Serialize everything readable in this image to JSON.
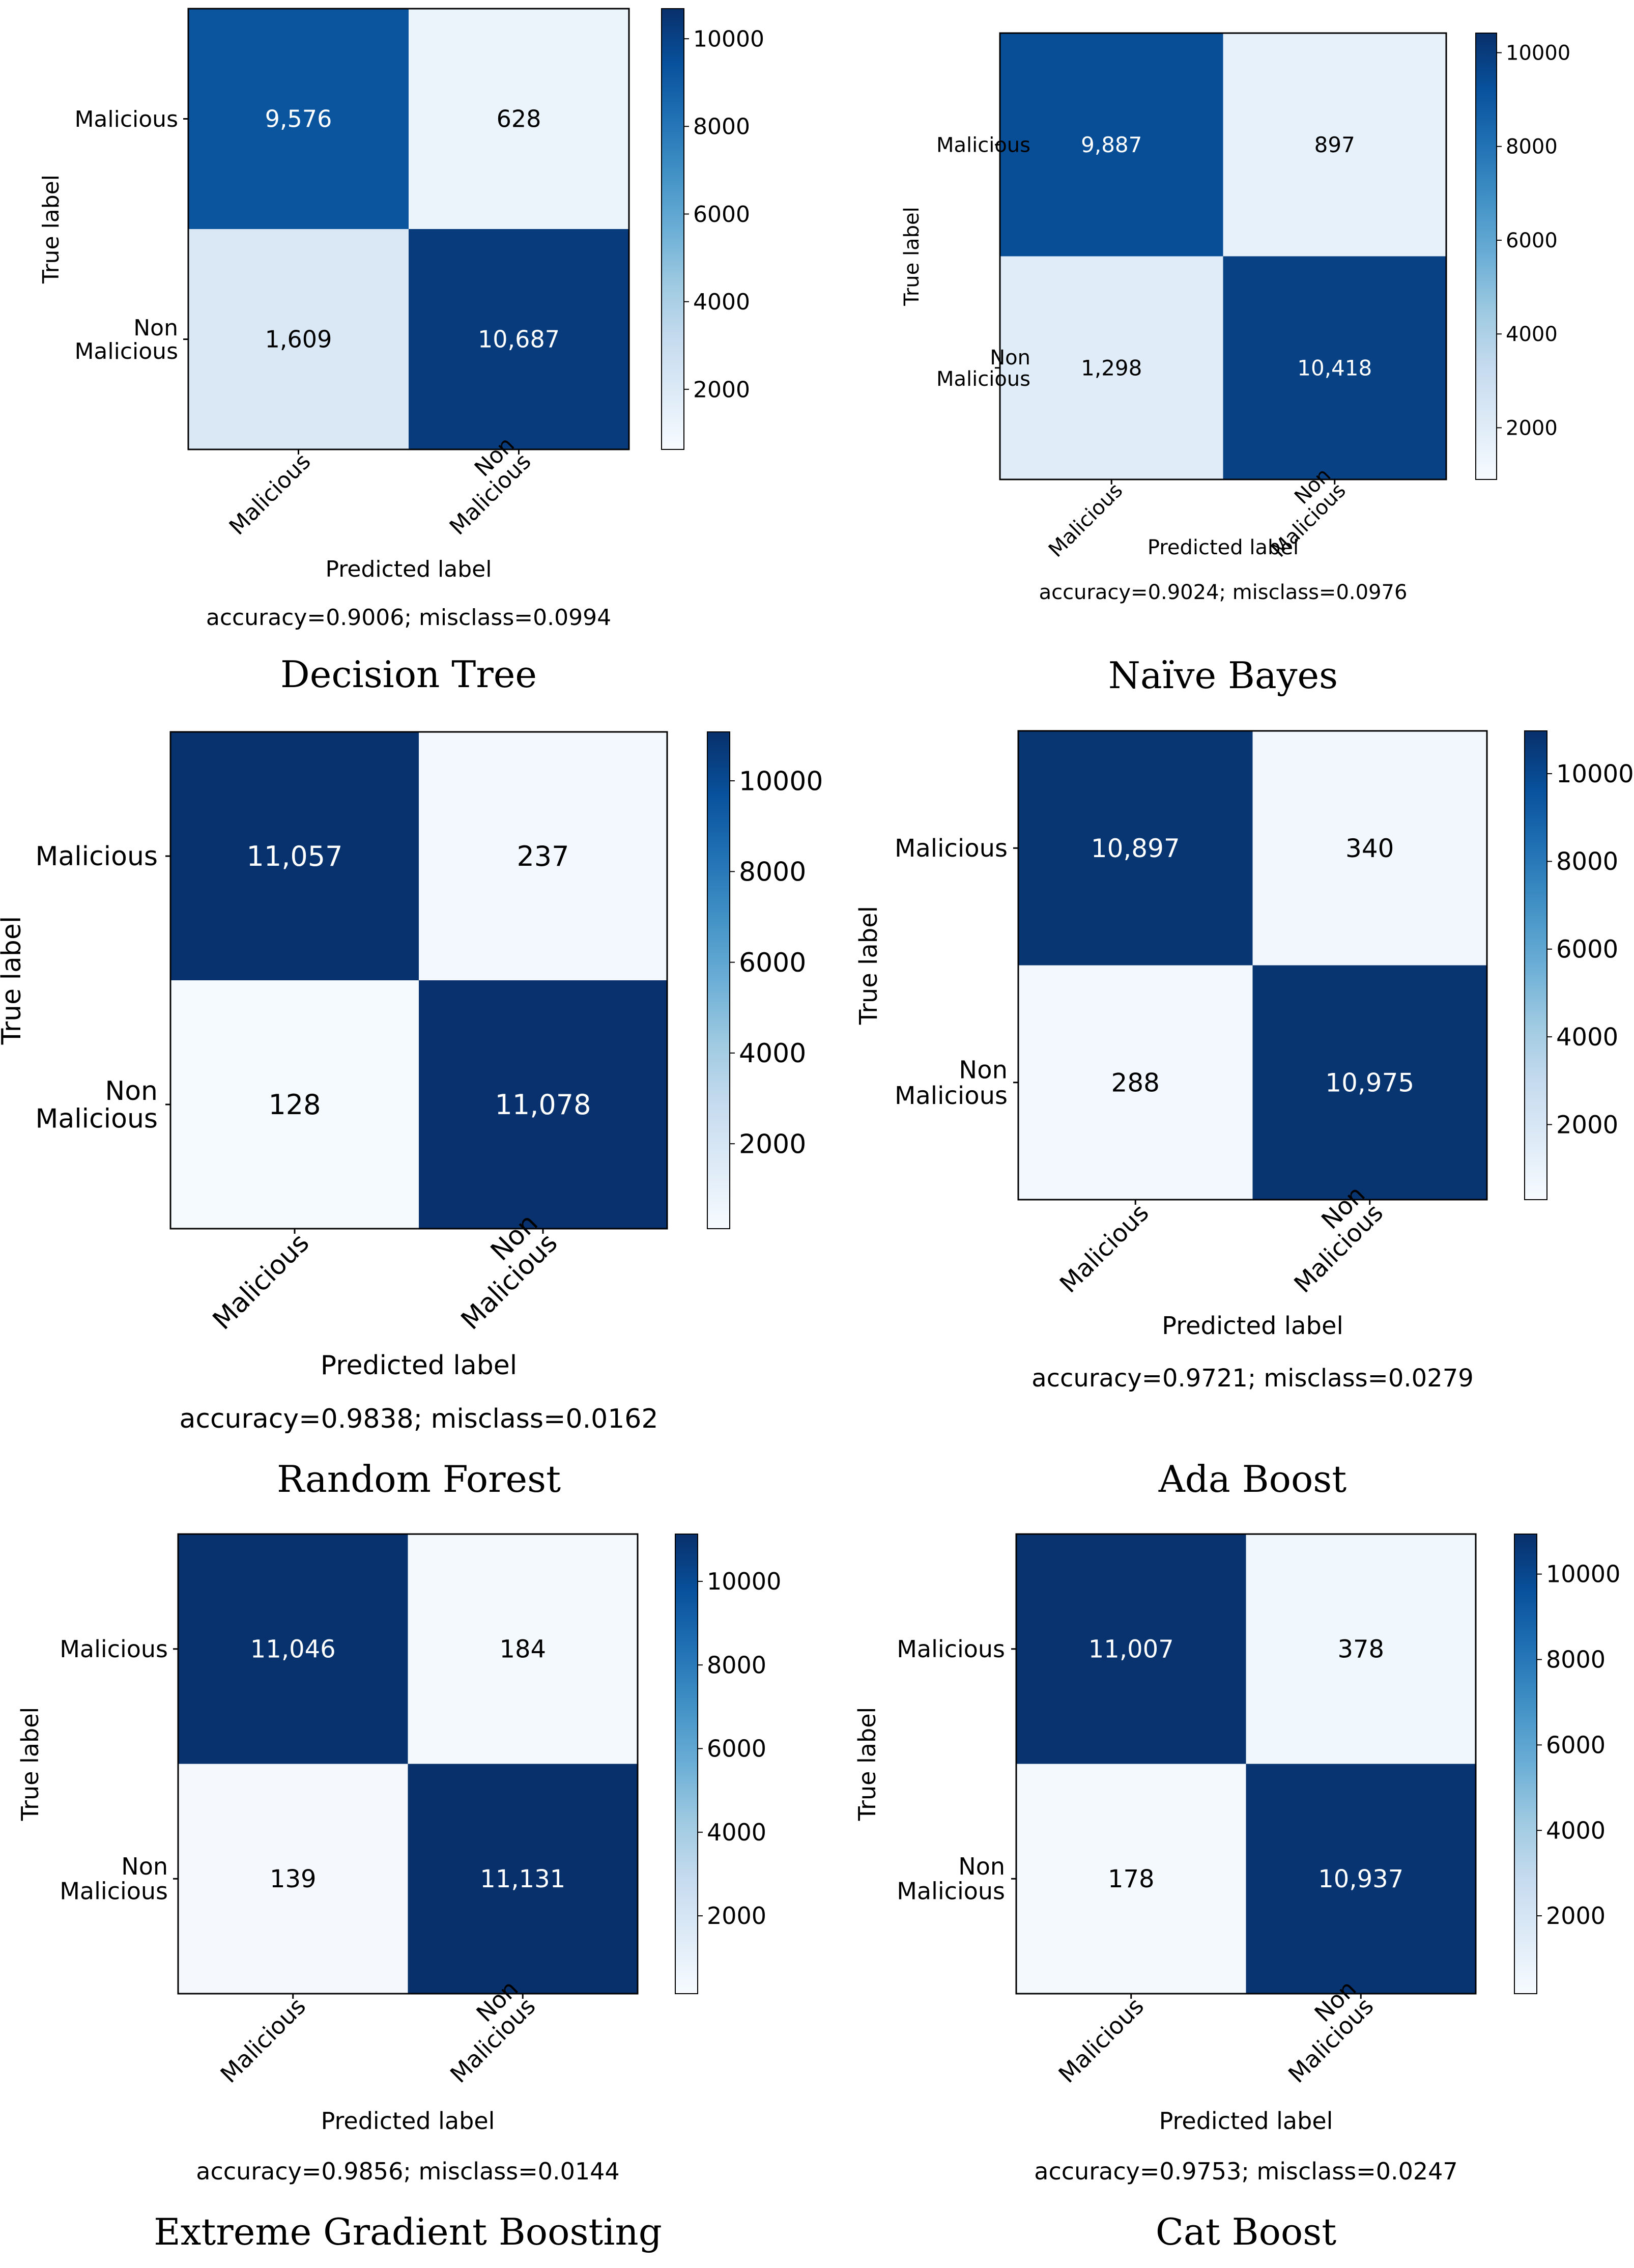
{
  "figure": {
    "colorbar_max": 11131,
    "colormap_stops": [
      "#f7fbff",
      "#deebf7",
      "#c6dbef",
      "#9ecae1",
      "#6baed6",
      "#4292c6",
      "#2171b5",
      "#08519c",
      "#08306b"
    ],
    "colorbar_ticks": [
      "2000",
      "4000",
      "6000",
      "8000",
      "10000"
    ]
  },
  "chart_data": [
    {
      "type": "heatmap",
      "title": "Decision Tree",
      "ylabel": "True label",
      "xlabel": "Predicted label",
      "row_labels": [
        [
          "Malicious"
        ],
        [
          "Non",
          "Malicious"
        ]
      ],
      "col_labels": [
        [
          "Malicious"
        ],
        [
          "Non",
          "Malicious"
        ]
      ],
      "matrix": [
        [
          9576,
          628
        ],
        [
          1609,
          10687
        ]
      ],
      "cell_text": [
        [
          "9,576",
          "628"
        ],
        [
          "1,609",
          "10,687"
        ]
      ],
      "metrics": "accuracy=0.9006; misclass=0.0994",
      "colorbar": {
        "range": [
          628,
          10687
        ],
        "ticks": [
          "2000",
          "4000",
          "6000",
          "8000",
          "10000"
        ]
      }
    },
    {
      "type": "heatmap",
      "title": "Naïve Bayes",
      "ylabel": "True label",
      "xlabel": "Predicted label",
      "row_labels": [
        [
          "Malicious"
        ],
        [
          "Non",
          "Malicious"
        ]
      ],
      "col_labels": [
        [
          "Malicious"
        ],
        [
          "Non",
          "Malicious"
        ]
      ],
      "matrix": [
        [
          9887,
          897
        ],
        [
          1298,
          10418
        ]
      ],
      "cell_text": [
        [
          "9,887",
          "897"
        ],
        [
          "1,298",
          "10,418"
        ]
      ],
      "metrics": "accuracy=0.9024; misclass=0.0976",
      "colorbar": {
        "range": [
          897,
          10418
        ],
        "ticks": [
          "2000",
          "4000",
          "6000",
          "8000",
          "10000"
        ]
      }
    },
    {
      "type": "heatmap",
      "title": "Random Forest",
      "ylabel": "True label",
      "xlabel": "Predicted label",
      "row_labels": [
        [
          "Malicious"
        ],
        [
          "Non",
          "Malicious"
        ]
      ],
      "col_labels": [
        [
          "Malicious"
        ],
        [
          "Non",
          "Malicious"
        ]
      ],
      "matrix": [
        [
          11057,
          237
        ],
        [
          128,
          11078
        ]
      ],
      "cell_text": [
        [
          "11,057",
          "237"
        ],
        [
          "128",
          "11,078"
        ]
      ],
      "metrics": "accuracy=0.9838; misclass=0.0162",
      "colorbar": {
        "range": [
          128,
          11078
        ],
        "ticks": [
          "2000",
          "4000",
          "6000",
          "8000",
          "10000"
        ]
      }
    },
    {
      "type": "heatmap",
      "title": "Ada Boost",
      "ylabel": "True label",
      "xlabel": "Predicted label",
      "row_labels": [
        [
          "Malicious"
        ],
        [
          "Non",
          "Malicious"
        ]
      ],
      "col_labels": [
        [
          "Malicious"
        ],
        [
          "Non",
          "Malicious"
        ]
      ],
      "matrix": [
        [
          10897,
          340
        ],
        [
          288,
          10975
        ]
      ],
      "cell_text": [
        [
          "10,897",
          "340"
        ],
        [
          "288",
          "10,975"
        ]
      ],
      "metrics": "accuracy=0.9721; misclass=0.0279",
      "colorbar": {
        "range": [
          288,
          10975
        ],
        "ticks": [
          "2000",
          "4000",
          "6000",
          "8000",
          "10000"
        ]
      }
    },
    {
      "type": "heatmap",
      "title": "Extreme Gradient Boosting",
      "ylabel": "True label",
      "xlabel": "Predicted label",
      "row_labels": [
        [
          "Malicious"
        ],
        [
          "Non",
          "Malicious"
        ]
      ],
      "col_labels": [
        [
          "Malicious"
        ],
        [
          "Non",
          "Malicious"
        ]
      ],
      "matrix": [
        [
          11046,
          184
        ],
        [
          139,
          11131
        ]
      ],
      "cell_text": [
        [
          "11,046",
          "184"
        ],
        [
          "139",
          "11,131"
        ]
      ],
      "metrics": "accuracy=0.9856; misclass=0.0144",
      "colorbar": {
        "range": [
          139,
          11131
        ],
        "ticks": [
          "2000",
          "4000",
          "6000",
          "8000",
          "10000"
        ]
      }
    },
    {
      "type": "heatmap",
      "title": "Cat Boost",
      "ylabel": "True label",
      "xlabel": "Predicted label",
      "row_labels": [
        [
          "Malicious"
        ],
        [
          "Non",
          "Malicious"
        ]
      ],
      "col_labels": [
        [
          "Malicious"
        ],
        [
          "Non",
          "Malicious"
        ]
      ],
      "matrix": [
        [
          11007,
          378
        ],
        [
          178,
          10937
        ]
      ],
      "cell_text": [
        [
          "11,007",
          "378"
        ],
        [
          "178",
          "10,937"
        ]
      ],
      "metrics": "accuracy=0.9753; misclass=0.0247",
      "colorbar": {
        "range": [
          178,
          10937
        ],
        "ticks": [
          "2000",
          "4000",
          "6000",
          "8000",
          "10000"
        ]
      }
    }
  ]
}
